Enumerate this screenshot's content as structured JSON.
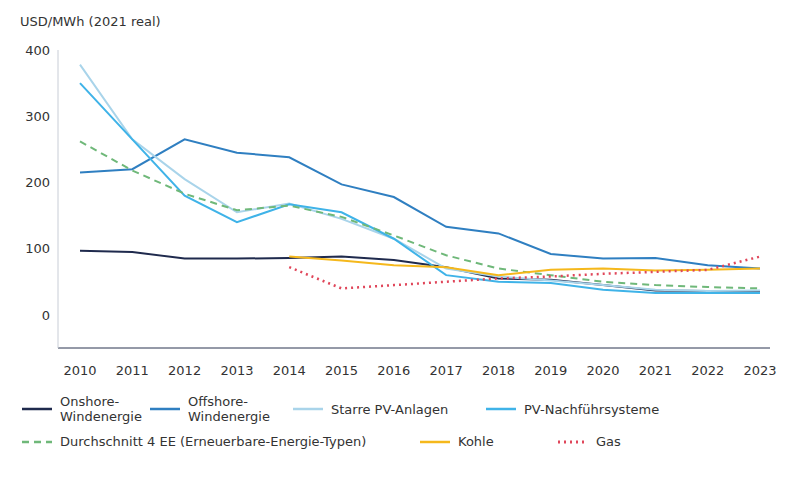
{
  "chart_data": {
    "type": "line",
    "y_label": "USD/MWh (2021 real)",
    "categories": [
      "2010",
      "2011",
      "2012",
      "2013",
      "2014",
      "2015",
      "2016",
      "2017",
      "2018",
      "2019",
      "2020",
      "2021",
      "2022",
      "2023"
    ],
    "ylim": [
      -50,
      400
    ],
    "yticks": [
      0,
      100,
      200,
      300,
      400
    ],
    "grid": false,
    "legend": "bottom",
    "series": [
      {
        "name": "Onshore-Windenergie",
        "color": "#1f2a4d",
        "line_style": "solid",
        "values": [
          97,
          95,
          85,
          85,
          86,
          88,
          83,
          72,
          55,
          53,
          45,
          37,
          36,
          36
        ]
      },
      {
        "name": "Offshore-Windenergie",
        "color": "#2f7fc1",
        "line_style": "solid",
        "values": [
          215,
          220,
          265,
          245,
          238,
          197,
          178,
          133,
          123,
          92,
          85,
          86,
          75,
          70
        ]
      },
      {
        "name": "Starre PV-Anlagen",
        "color": "#a9d4ea",
        "line_style": "solid",
        "values": [
          378,
          265,
          205,
          155,
          168,
          145,
          115,
          70,
          58,
          52,
          45,
          38,
          36,
          37
        ]
      },
      {
        "name": "PV-Nachführsysteme",
        "color": "#3fb3e8",
        "line_style": "solid",
        "values": [
          350,
          265,
          180,
          140,
          167,
          155,
          115,
          60,
          50,
          48,
          38,
          33,
          33,
          33
        ]
      },
      {
        "name": "Durchschnitt 4 EE (Erneuerbare-Energie-Typen)",
        "color": "#6fb879",
        "line_style": "dashed",
        "values": [
          262,
          218,
          183,
          158,
          165,
          148,
          120,
          90,
          70,
          60,
          50,
          45,
          42,
          40
        ]
      },
      {
        "name": "Kohle",
        "color": "#f5b81c",
        "line_style": "solid",
        "values": [
          null,
          null,
          null,
          null,
          88,
          82,
          75,
          72,
          60,
          68,
          70,
          67,
          68,
          70
        ]
      },
      {
        "name": "Gas",
        "color": "#e0465a",
        "line_style": "dotted",
        "values": [
          null,
          null,
          null,
          null,
          72,
          40,
          45,
          50,
          55,
          58,
          62,
          65,
          68,
          88
        ]
      }
    ]
  }
}
